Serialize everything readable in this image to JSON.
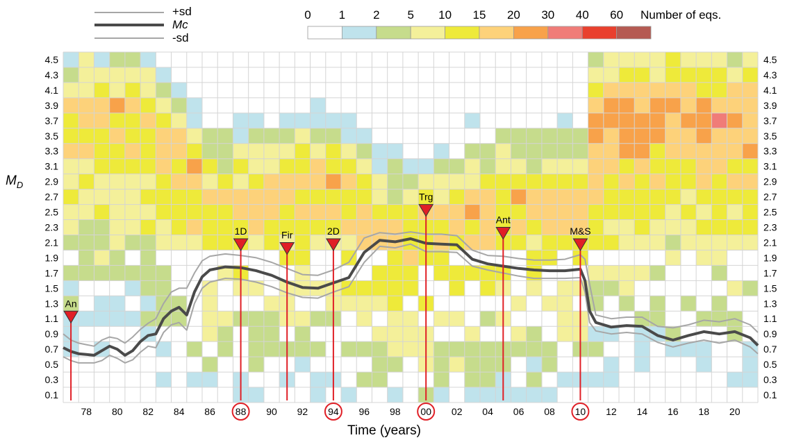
{
  "chart_data": {
    "type": "heatmap",
    "xlabel": "Time (years)",
    "ylabel": "M",
    "ylabel_sub": "D",
    "x_tick_labels": [
      "78",
      "80",
      "82",
      "84",
      "86",
      "88",
      "90",
      "92",
      "94",
      "96",
      "98",
      "00",
      "02",
      "04",
      "06",
      "08",
      "10",
      "12",
      "14",
      "16",
      "18",
      "20"
    ],
    "x_tick_years": [
      1978,
      1980,
      1982,
      1984,
      1986,
      1988,
      1990,
      1992,
      1994,
      1996,
      1998,
      2000,
      2002,
      2004,
      2006,
      2008,
      2010,
      2012,
      2014,
      2016,
      2018,
      2020
    ],
    "circled_ticks": [
      "88",
      "94",
      "00",
      "10"
    ],
    "x_range_years": [
      1976.5,
      2021.5
    ],
    "y_tick_labels": [
      "0.1",
      "0.3",
      "0.5",
      "0.7",
      "0.9",
      "1.1",
      "1.3",
      "1.5",
      "1.7",
      "1.9",
      "2.1",
      "2.3",
      "2.5",
      "2.7",
      "2.9",
      "3.1",
      "3.3",
      "3.5",
      "3.7",
      "3.9",
      "4.1",
      "4.3",
      "4.5"
    ],
    "y_range": [
      0.0,
      4.6
    ],
    "grid": true,
    "colorbar": {
      "title": "Number of eqs.",
      "boundary_labels": [
        "0",
        "1",
        "2",
        "5",
        "10",
        "15",
        "20",
        "30",
        "40",
        "60"
      ],
      "colors": [
        "#ffffff",
        "#bfe3ec",
        "#c6dc8c",
        "#f4f09a",
        "#eeea3a",
        "#fdd27a",
        "#f8a24a",
        "#f07c78",
        "#e9402e",
        "#b55a52"
      ]
    },
    "legend": {
      "position": "top-left",
      "entries": [
        {
          "label": "+sd",
          "color": "#a6a6a6"
        },
        {
          "label": "Mc",
          "color": "#4a4a4a"
        },
        {
          "label": "-sd",
          "color": "#a6a6a6"
        }
      ]
    },
    "events": [
      {
        "label": "An",
        "year": 1977.0,
        "md": 1.2
      },
      {
        "label": "1D",
        "year": 1988.0,
        "md": 2.15
      },
      {
        "label": "Fir",
        "year": 1991.0,
        "md": 2.1
      },
      {
        "label": "2D",
        "year": 1994.0,
        "md": 2.15
      },
      {
        "label": "Trg",
        "year": 2000.0,
        "md": 2.6
      },
      {
        "label": "Ant",
        "year": 2005.0,
        "md": 2.3
      },
      {
        "label": "M&S",
        "year": 2010.0,
        "md": 2.15
      }
    ],
    "series": [
      {
        "role": "mc",
        "x": [
          1976.5,
          1977,
          1977.5,
          1978,
          1978.5,
          1979,
          1979.5,
          1980,
          1980.5,
          1981,
          1981.5,
          1982,
          1982.5,
          1983,
          1983.5,
          1984,
          1984.5,
          1985,
          1985.5,
          1986,
          1987,
          1988,
          1989,
          1990,
          1991,
          1992,
          1993,
          1994,
          1995,
          1996,
          1997,
          1998,
          1999,
          2000,
          2001,
          2002,
          2003,
          2004,
          2005,
          2006,
          2007,
          2008,
          2009,
          2010,
          2010.3,
          2010.6,
          2011,
          2012,
          2013,
          2014,
          2015,
          2016,
          2017,
          2018,
          2019,
          2020,
          2021,
          2021.5
        ],
        "values": [
          0.72,
          0.67,
          0.64,
          0.63,
          0.62,
          0.68,
          0.74,
          0.7,
          0.62,
          0.68,
          0.8,
          0.88,
          0.9,
          1.1,
          1.2,
          1.25,
          1.15,
          1.45,
          1.65,
          1.74,
          1.78,
          1.77,
          1.73,
          1.67,
          1.58,
          1.51,
          1.5,
          1.57,
          1.64,
          1.97,
          2.13,
          2.11,
          2.15,
          2.09,
          2.08,
          2.07,
          1.88,
          1.82,
          1.79,
          1.76,
          1.74,
          1.73,
          1.73,
          1.75,
          1.6,
          1.2,
          1.05,
          0.99,
          1.01,
          1.0,
          0.88,
          0.82,
          0.88,
          0.93,
          0.9,
          0.93,
          0.85,
          0.75
        ]
      },
      {
        "role": "plus_sd",
        "x": [
          1976.5,
          1977,
          1977.5,
          1978,
          1978.5,
          1979,
          1979.5,
          1980,
          1980.5,
          1981,
          1981.5,
          1982,
          1982.5,
          1983,
          1983.5,
          1984,
          1984.5,
          1985,
          1985.5,
          1986,
          1987,
          1988,
          1989,
          1990,
          1991,
          1992,
          1993,
          1994,
          1995,
          1996,
          1997,
          1998,
          1999,
          2000,
          2001,
          2002,
          2003,
          2004,
          2005,
          2006,
          2007,
          2008,
          2009,
          2010,
          2010.3,
          2010.6,
          2011,
          2012,
          2013,
          2014,
          2015,
          2016,
          2017,
          2018,
          2019,
          2020,
          2021,
          2021.5
        ],
        "values": [
          0.9,
          0.82,
          0.78,
          0.76,
          0.74,
          0.82,
          0.86,
          0.84,
          0.78,
          0.86,
          0.96,
          1.04,
          1.1,
          1.3,
          1.45,
          1.5,
          1.5,
          1.7,
          1.86,
          1.92,
          1.95,
          1.93,
          1.9,
          1.84,
          1.76,
          1.68,
          1.67,
          1.74,
          1.84,
          2.16,
          2.23,
          2.21,
          2.24,
          2.21,
          2.21,
          2.19,
          2.0,
          1.93,
          1.92,
          1.89,
          1.87,
          1.87,
          1.88,
          1.94,
          1.88,
          1.55,
          1.15,
          1.1,
          1.12,
          1.12,
          1.0,
          0.98,
          1.02,
          1.08,
          1.06,
          1.1,
          1.02,
          0.92
        ]
      },
      {
        "role": "minus_sd",
        "x": [
          1976.5,
          1977,
          1977.5,
          1978,
          1978.5,
          1979,
          1979.5,
          1980,
          1980.5,
          1981,
          1981.5,
          1982,
          1982.5,
          1983,
          1983.5,
          1984,
          1984.5,
          1985,
          1985.5,
          1986,
          1987,
          1988,
          1989,
          1990,
          1991,
          1992,
          1993,
          1994,
          1995,
          1996,
          1997,
          1998,
          1999,
          2000,
          2001,
          2002,
          2003,
          2004,
          2005,
          2006,
          2007,
          2008,
          2009,
          2010,
          2010.3,
          2010.6,
          2011,
          2012,
          2013,
          2014,
          2015,
          2016,
          2017,
          2018,
          2019,
          2020,
          2021,
          2021.5
        ],
        "values": [
          0.6,
          0.55,
          0.52,
          0.52,
          0.52,
          0.55,
          0.62,
          0.58,
          0.52,
          0.56,
          0.66,
          0.74,
          0.72,
          0.92,
          1.02,
          1.05,
          0.95,
          1.3,
          1.5,
          1.58,
          1.63,
          1.62,
          1.58,
          1.52,
          1.44,
          1.38,
          1.37,
          1.45,
          1.52,
          1.84,
          2.05,
          2.03,
          2.08,
          1.98,
          1.98,
          1.97,
          1.79,
          1.74,
          1.7,
          1.66,
          1.63,
          1.63,
          1.63,
          1.64,
          1.45,
          1.05,
          0.94,
          0.9,
          0.92,
          0.9,
          0.79,
          0.73,
          0.78,
          0.82,
          0.78,
          0.82,
          0.73,
          0.64
        ]
      }
    ]
  }
}
